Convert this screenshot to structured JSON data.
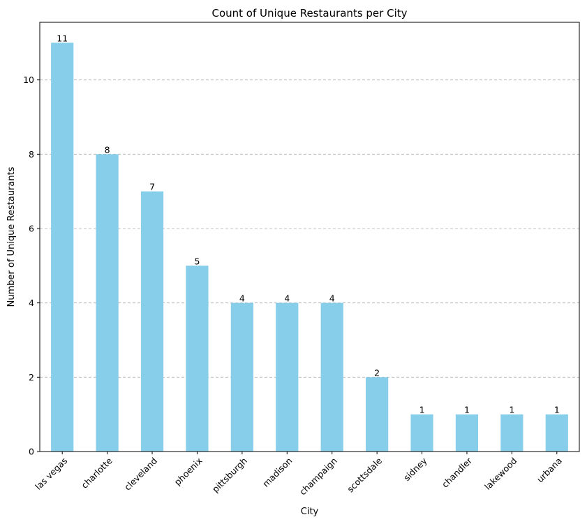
{
  "chart_data": {
    "type": "bar",
    "title": "Count of Unique Restaurants per City",
    "xlabel": "City",
    "ylabel": "Number of Unique Restaurants",
    "categories": [
      "las vegas",
      "charlotte",
      "cleveland",
      "phoenix",
      "pittsburgh",
      "madison",
      "champaign",
      "scottsdale",
      "sidney",
      "chandler",
      "lakewood",
      "urbana"
    ],
    "values": [
      11,
      8,
      7,
      5,
      4,
      4,
      4,
      2,
      1,
      1,
      1,
      1
    ],
    "ylim": [
      0,
      11.55
    ],
    "yticks": [
      0,
      2,
      4,
      6,
      8,
      10
    ],
    "grid": "y-dashed",
    "bar_color": "#87CEEB",
    "data_labels": true,
    "legend": "none"
  }
}
